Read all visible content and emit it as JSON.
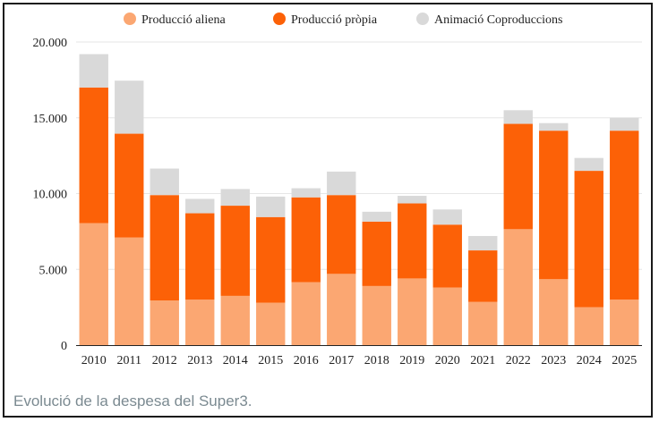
{
  "caption": "Evolució de la despesa del Super3.",
  "colors": {
    "produccio_aliena": "#fba772",
    "produccio_propia": "#fc6107",
    "animacio_coproduccions": "#d9d9d9",
    "grid": "#e6e6e6",
    "axis": "#222222"
  },
  "chart_data": {
    "type": "bar",
    "stacked": true,
    "categories": [
      "2010",
      "2011",
      "2012",
      "2013",
      "2014",
      "2015",
      "2016",
      "2017",
      "2018",
      "2019",
      "2020",
      "2021",
      "2022",
      "2023",
      "2024",
      "2025"
    ],
    "series": [
      {
        "name": "Producció aliena",
        "color_key": "produccio_aliena",
        "values": [
          8050,
          7100,
          2950,
          3000,
          3250,
          2800,
          4150,
          4700,
          3900,
          4400,
          3800,
          2850,
          7650,
          4350,
          2500,
          3000
        ]
      },
      {
        "name": "Producció pròpia",
        "color_key": "produccio_propia",
        "values": [
          8950,
          6850,
          6950,
          5700,
          5950,
          5650,
          5600,
          5200,
          4250,
          4950,
          4150,
          3400,
          6950,
          9800,
          9000,
          11150
        ]
      },
      {
        "name": "Animació Coproduccions",
        "color_key": "animacio_coproduccions",
        "values": [
          2200,
          3500,
          1750,
          950,
          1100,
          1350,
          600,
          1550,
          650,
          500,
          1000,
          950,
          900,
          500,
          850,
          850
        ]
      }
    ],
    "yticks": [
      0,
      5000,
      10000,
      15000,
      20000
    ],
    "ytick_labels": [
      "0",
      "5.000",
      "10.000",
      "15.000",
      "20.000"
    ],
    "ylim": [
      0,
      20000
    ],
    "grid": true,
    "legend_position": "top-center"
  }
}
